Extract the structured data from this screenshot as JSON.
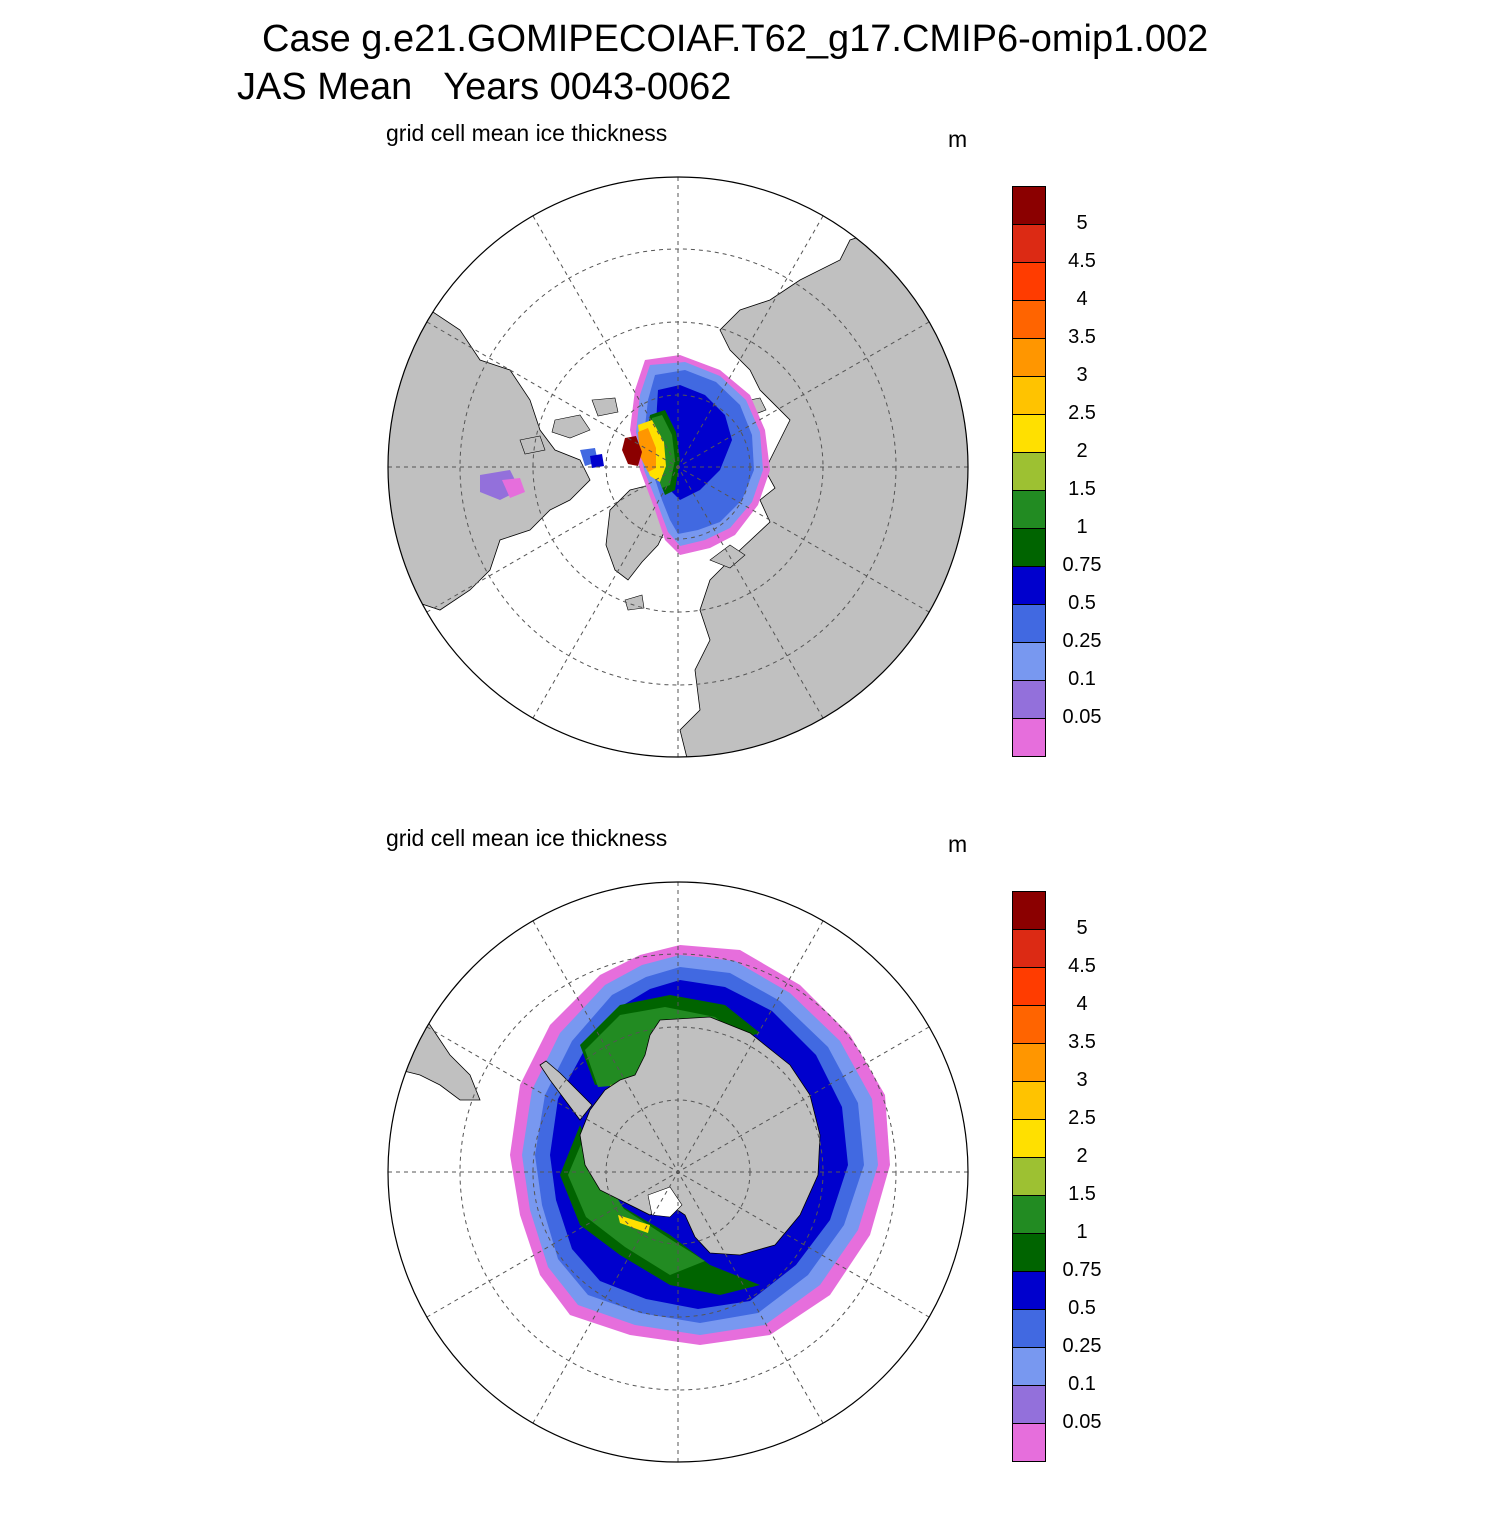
{
  "figure": {
    "title_line1": "Case g.e21.GOMIPECOIAF.T62_g17.CMIP6-omip1.002",
    "title_line2": "JAS Mean   Years 0043-0062"
  },
  "panels": [
    {
      "id": "north",
      "subtitle": "grid cell mean ice thickness",
      "units": "m",
      "hemisphere": "Northern (north polar stereographic)"
    },
    {
      "id": "south",
      "subtitle": "grid cell mean ice thickness",
      "units": "m",
      "hemisphere": "Southern (south polar stereographic)"
    }
  ],
  "colorbar": {
    "labels": [
      "5",
      "4.5",
      "4",
      "3.5",
      "3",
      "2.5",
      "2",
      "1.5",
      "1",
      "0.75",
      "0.5",
      "0.25",
      "0.1",
      "0.05"
    ],
    "colors_top_to_bottom": [
      "#8b0000",
      "#dc2a14",
      "#ff3c00",
      "#ff6400",
      "#ff9600",
      "#ffc300",
      "#ffe000",
      "#9dc132",
      "#228b22",
      "#006400",
      "#0000cd",
      "#4169e1",
      "#7898f0",
      "#9370db",
      "#e66edc"
    ]
  },
  "colors": {
    "land": "#c0c0c0",
    "ocean": "#ffffff",
    "grid": "#555555"
  }
}
